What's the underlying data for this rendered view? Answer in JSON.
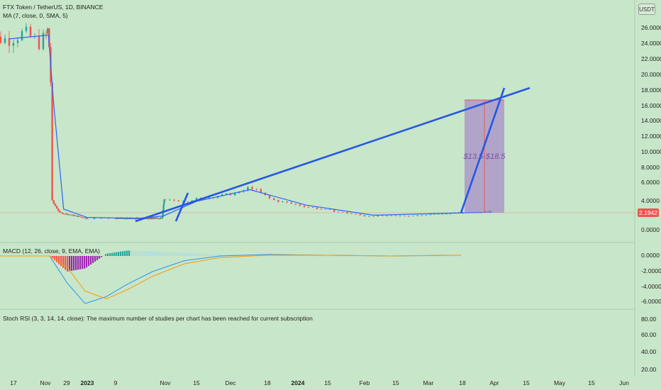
{
  "header": {
    "symbol_title": "FTX Token / TetherUS, 1D, BINANCE",
    "ma_legend": "MA (7, close, 0, SMA, 5)",
    "currency_button": "USDT"
  },
  "price_label": "2.1942",
  "colors": {
    "background": "#c8e6c9",
    "up": "#26a69a",
    "down": "#ef5350",
    "ma_line": "#2962ff",
    "trend_line": "#2556e6",
    "target_box": "#9c6fc9",
    "macd_line": "#2196f3",
    "signal_line": "#ff9800",
    "hist_up": "#26a69a",
    "hist_up_light": "#b2dfdb",
    "hist_down": "#ef5350",
    "hist_down_purple": "#9c27b0",
    "price_label_bg": "#ef5350"
  },
  "annotation": {
    "target_label": "$13.5-$18.5"
  },
  "macd_panel": {
    "legend": "MACD (12, 26, close, 9, EMA, EMA)",
    "ticks": [
      "0.0000",
      "-2.0000",
      "-4.0000",
      "-6.0000"
    ]
  },
  "stoch_panel": {
    "legend": "Stoch RSI (3, 3, 14, 14, close): The maximum number of studies per chart has been reached for current subscription",
    "ticks": [
      "80.00",
      "60.00",
      "40.00",
      "20.00"
    ]
  },
  "chart_data": {
    "type": "line",
    "title": "FTX Token / TetherUS, 1D, BINANCE",
    "y_axis_ticks": [
      "26.0000",
      "24.0000",
      "22.0000",
      "20.0000",
      "18.0000",
      "16.0000",
      "14.0000",
      "12.0000",
      "10.0000",
      "8.0000",
      "6.0000",
      "4.0000",
      "0.0000"
    ],
    "ylim": [
      0,
      27
    ],
    "x_axis_ticks": [
      "17",
      "Nov",
      "29",
      "2023",
      "9",
      "Nov",
      "15",
      "Dec",
      "18",
      "2024",
      "15",
      "Feb",
      "15",
      "Mar",
      "18",
      "Apr",
      "15",
      "May",
      "15",
      "Jun"
    ],
    "series": [
      {
        "name": "price",
        "x": [
          "2022-10-15",
          "2022-10-22",
          "2022-10-29",
          "2022-11-05",
          "2022-11-08",
          "2022-11-10",
          "2022-11-20",
          "2023-01-01",
          "2023-06-01",
          "2023-10-15",
          "2023-10-25",
          "2023-11-10",
          "2023-12-05",
          "2023-12-10",
          "2023-12-20",
          "2024-01-05",
          "2024-02-01",
          "2024-02-20",
          "2024-03-15",
          "2024-03-31"
        ],
        "values": [
          24.5,
          25.3,
          24.0,
          25.8,
          19.0,
          3.5,
          2.0,
          1.3,
          1.3,
          1.3,
          3.6,
          3.6,
          4.6,
          5.4,
          3.7,
          2.8,
          1.6,
          1.6,
          2.0,
          2.19
        ]
      },
      {
        "name": "MA (7, close, 0, SMA, 5)",
        "x": [
          "2022-10-15",
          "2022-11-05",
          "2022-11-12",
          "2022-11-25",
          "2023-01-01",
          "2023-06-01",
          "2023-10-20",
          "2023-11-15",
          "2023-12-10",
          "2024-01-05",
          "2024-02-05",
          "2024-03-31"
        ],
        "values": [
          24.5,
          25.0,
          16.0,
          2.5,
          1.4,
          1.3,
          1.6,
          3.5,
          5.0,
          3.0,
          1.7,
          2.1
        ]
      }
    ],
    "current_price": 2.1942,
    "annotations": [
      {
        "type": "trend_line",
        "from": {
          "x": "2023-06-01",
          "y": 1.3
        },
        "to": {
          "x": "2024-04-10",
          "y": 18.3
        }
      },
      {
        "type": "target_range",
        "label": "$13.5-$18.5",
        "y_range": [
          2.19,
          16.7
        ],
        "x_range": [
          "2024-03-31",
          "2024-04-20"
        ]
      }
    ],
    "macd": {
      "name": "MACD (12, 26, close, 9, EMA, EMA)",
      "ylim": [
        -6.5,
        0.3
      ],
      "macd_line": [
        0.0,
        0.0,
        -3.5,
        -6.1,
        -5.2,
        -3.6,
        -2.0,
        -0.6,
        0.0,
        0.2,
        0.1,
        0.0,
        0.1
      ],
      "signal_line": [
        0.0,
        0.0,
        -1.5,
        -4.5,
        -5.5,
        -4.3,
        -2.6,
        -1.0,
        -0.2,
        0.1,
        0.1,
        0.0,
        0.1
      ]
    }
  }
}
